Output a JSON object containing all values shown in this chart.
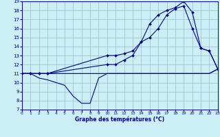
{
  "xlabel": "Graphe des températures (°C)",
  "xlim": [
    0,
    23
  ],
  "ylim": [
    7,
    19
  ],
  "xticks": [
    0,
    1,
    2,
    3,
    4,
    5,
    6,
    7,
    8,
    9,
    10,
    11,
    12,
    13,
    14,
    15,
    16,
    17,
    18,
    19,
    20,
    21,
    22,
    23
  ],
  "yticks": [
    7,
    8,
    9,
    10,
    11,
    12,
    13,
    14,
    15,
    16,
    17,
    18,
    19
  ],
  "bg_color": "#cceef5",
  "line_color": "#00008b",
  "grid_color": "#99bbcc",
  "curves": [
    {
      "x": [
        0,
        1,
        2,
        3,
        4,
        5,
        6,
        7,
        8,
        9,
        10,
        11,
        12,
        13,
        14,
        15,
        16,
        17,
        18,
        19,
        20,
        21,
        22,
        23
      ],
      "y": [
        11,
        11,
        10.5,
        10.3,
        10,
        9.7,
        8.5,
        7.7,
        7.7,
        10.5,
        11,
        11,
        11,
        11,
        11,
        11,
        11,
        11,
        11,
        11,
        11,
        11,
        11,
        11.5
      ],
      "marker": false
    },
    {
      "x": [
        0,
        1,
        2,
        3,
        4,
        5,
        6,
        7,
        8,
        9,
        10,
        11,
        12,
        13,
        14,
        15,
        16,
        17,
        18,
        19,
        20,
        21,
        22,
        23
      ],
      "y": [
        11,
        11,
        11,
        11,
        11,
        11,
        11,
        11,
        11,
        11,
        11,
        11,
        11,
        11,
        11,
        11,
        11,
        11,
        11,
        11,
        11,
        11,
        11,
        11.5
      ],
      "marker": false
    },
    {
      "x": [
        0,
        1,
        2,
        3,
        10,
        11,
        12,
        13,
        14,
        15,
        16,
        17,
        18,
        19,
        20,
        21,
        22,
        23
      ],
      "y": [
        11,
        11,
        11,
        11,
        13,
        13,
        13.2,
        13.5,
        14.5,
        16.5,
        17.5,
        18,
        18.3,
        19,
        17.8,
        13.8,
        13.5,
        11.5
      ],
      "marker": true
    },
    {
      "x": [
        0,
        1,
        2,
        3,
        10,
        11,
        12,
        13,
        14,
        15,
        16,
        17,
        18,
        19,
        20,
        21,
        22,
        23
      ],
      "y": [
        11,
        11,
        11,
        11,
        12,
        12,
        12.5,
        13,
        14.5,
        15,
        16,
        17.5,
        18.2,
        18.5,
        16,
        13.8,
        13.5,
        11.5
      ],
      "marker": true
    }
  ]
}
